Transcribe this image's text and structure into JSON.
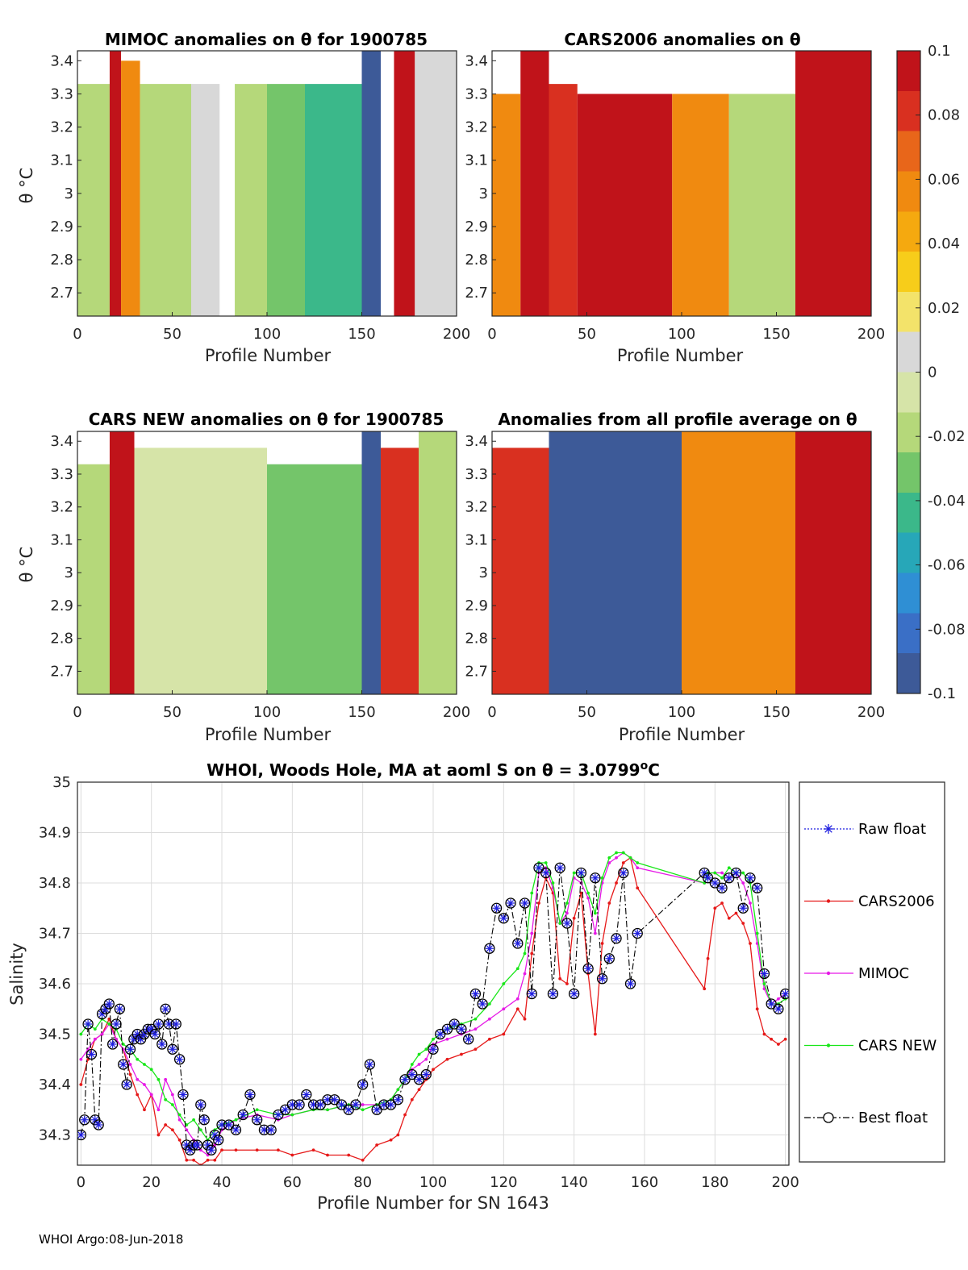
{
  "footer": "WHOI Argo:08-Jun-2018",
  "colorbar": {
    "ticks": [
      "0.1",
      "0.08",
      "0.06",
      "0.04",
      "0.02",
      "0",
      "-0.02",
      "-0.04",
      "-0.06",
      "-0.08",
      "-0.1"
    ],
    "range": [
      -0.1,
      0.1
    ],
    "colors": [
      "#3d5a98",
      "#3a6fc6",
      "#2f8fd4",
      "#27a7b8",
      "#3bb88a",
      "#74c56a",
      "#b5d87a",
      "#d6e4a8",
      "#d8d8d8",
      "#f3e36a",
      "#f7cd1a",
      "#f5a90f",
      "#f08a10",
      "#e8661a",
      "#d93020",
      "#c0131a"
    ]
  },
  "panels": [
    {
      "title": "MIMOC anomalies on θ  for 1900785",
      "xlabel": "Profile Number",
      "ylabel": "θ °C",
      "xticks": [
        "0",
        "50",
        "100",
        "150",
        "200"
      ],
      "yticks": [
        "3.4",
        "3.3",
        "3.2",
        "3.1",
        "3",
        "2.9",
        "2.8",
        "2.7"
      ]
    },
    {
      "title": "CARS2006 anomalies on θ",
      "xlabel": "Profile Number",
      "ylabel": "",
      "xticks": [
        "0",
        "50",
        "100",
        "150",
        "200"
      ],
      "yticks": [
        "3.4",
        "3.3",
        "3.2",
        "3.1",
        "3",
        "2.9",
        "2.8",
        "2.7"
      ]
    },
    {
      "title": "CARS NEW anomalies on θ for 1900785",
      "xlabel": "Profile Number",
      "ylabel": "θ °C",
      "xticks": [
        "0",
        "50",
        "100",
        "150",
        "200"
      ],
      "yticks": [
        "3.4",
        "3.3",
        "3.2",
        "3.1",
        "3",
        "2.9",
        "2.8",
        "2.7"
      ]
    },
    {
      "title": "Anomalies from all profile average on θ",
      "xlabel": "Profile Number",
      "ylabel": "",
      "xticks": [
        "0",
        "50",
        "100",
        "150",
        "200"
      ],
      "yticks": [
        "3.4",
        "3.3",
        "3.2",
        "3.1",
        "3",
        "2.9",
        "2.8",
        "2.7"
      ]
    }
  ],
  "chart_data": [
    {
      "type": "heatmap",
      "title": "MIMOC anomalies on θ  for 1900785",
      "xlabel": "Profile Number",
      "ylabel": "θ °C",
      "xlim": [
        0,
        200
      ],
      "ylim": [
        2.63,
        3.43
      ],
      "clim": [
        -0.1,
        0.1
      ],
      "columns": [
        {
          "x0": 0,
          "x1": 17,
          "v": -0.02,
          "ymax": 3.33
        },
        {
          "x0": 17,
          "x1": 23,
          "v": 0.1,
          "ymax": 3.43
        },
        {
          "x0": 23,
          "x1": 33,
          "v": 0.05,
          "ymax": 3.4
        },
        {
          "x0": 33,
          "x1": 60,
          "v": -0.02,
          "ymax": 3.33
        },
        {
          "x0": 60,
          "x1": 75,
          "v": 0.0,
          "ymax": 3.33
        },
        {
          "x0": 83,
          "x1": 100,
          "v": -0.02,
          "ymax": 3.33
        },
        {
          "x0": 100,
          "x1": 120,
          "v": -0.03,
          "ymax": 3.33
        },
        {
          "x0": 120,
          "x1": 150,
          "v": -0.05,
          "ymax": 3.33
        },
        {
          "x0": 150,
          "x1": 160,
          "v": -0.09,
          "ymax": 3.43
        },
        {
          "x0": 167,
          "x1": 178,
          "v": 0.1,
          "ymax": 3.43
        },
        {
          "x0": 178,
          "x1": 200,
          "v": 0.0,
          "ymax": 3.43
        }
      ]
    },
    {
      "type": "heatmap",
      "title": "CARS2006 anomalies on θ",
      "xlabel": "Profile Number",
      "ylabel": "",
      "xlim": [
        0,
        200
      ],
      "ylim": [
        2.63,
        3.43
      ],
      "clim": [
        -0.1,
        0.1
      ],
      "columns": [
        {
          "x0": 0,
          "x1": 15,
          "v": 0.06,
          "ymax": 3.3
        },
        {
          "x0": 15,
          "x1": 30,
          "v": 0.1,
          "ymax": 3.43
        },
        {
          "x0": 30,
          "x1": 45,
          "v": 0.08,
          "ymax": 3.33
        },
        {
          "x0": 45,
          "x1": 95,
          "v": 0.1,
          "ymax": 3.3
        },
        {
          "x0": 95,
          "x1": 125,
          "v": 0.06,
          "ymax": 3.3
        },
        {
          "x0": 125,
          "x1": 160,
          "v": -0.02,
          "ymax": 3.3
        },
        {
          "x0": 160,
          "x1": 200,
          "v": 0.1,
          "ymax": 3.43
        }
      ]
    },
    {
      "type": "heatmap",
      "title": "CARS NEW anomalies on θ for 1900785",
      "xlabel": "Profile Number",
      "ylabel": "θ °C",
      "xlim": [
        0,
        200
      ],
      "ylim": [
        2.63,
        3.43
      ],
      "clim": [
        -0.1,
        0.1
      ],
      "columns": [
        {
          "x0": 0,
          "x1": 17,
          "v": -0.02,
          "ymax": 3.33
        },
        {
          "x0": 17,
          "x1": 30,
          "v": 0.1,
          "ymax": 3.43
        },
        {
          "x0": 30,
          "x1": 100,
          "v": -0.01,
          "ymax": 3.38
        },
        {
          "x0": 100,
          "x1": 150,
          "v": -0.03,
          "ymax": 3.33
        },
        {
          "x0": 150,
          "x1": 160,
          "v": -0.09,
          "ymax": 3.43
        },
        {
          "x0": 160,
          "x1": 180,
          "v": 0.08,
          "ymax": 3.38
        },
        {
          "x0": 180,
          "x1": 200,
          "v": -0.02,
          "ymax": 3.43
        }
      ]
    },
    {
      "type": "heatmap",
      "title": "Anomalies from all profile average on θ",
      "xlabel": "Profile Number",
      "ylabel": "",
      "xlim": [
        0,
        200
      ],
      "ylim": [
        2.63,
        3.43
      ],
      "clim": [
        -0.1,
        0.1
      ],
      "columns": [
        {
          "x0": 0,
          "x1": 30,
          "v": 0.08,
          "ymax": 3.38
        },
        {
          "x0": 30,
          "x1": 100,
          "v": -0.1,
          "ymax": 3.43
        },
        {
          "x0": 100,
          "x1": 160,
          "v": 0.06,
          "ymax": 3.43
        },
        {
          "x0": 160,
          "x1": 200,
          "v": 0.1,
          "ymax": 3.43
        }
      ]
    },
    {
      "type": "line",
      "title": "WHOI, Woods Hole, MA at aoml S on θ = 3.0799°C",
      "title_main": "WHOI, Woods Hole, MA at aoml S on θ = 3.0799",
      "title_unit": "o",
      "title_tail": "C",
      "xlabel": "Profile Number for SN 1643",
      "ylabel": "Salinity",
      "xlim": [
        -1,
        201
      ],
      "ylim": [
        34.24,
        35.0
      ],
      "xticks": [
        "0",
        "20",
        "40",
        "60",
        "80",
        "100",
        "120",
        "140",
        "160",
        "180",
        "200"
      ],
      "yticks": [
        "35",
        "34.9",
        "34.8",
        "34.7",
        "34.6",
        "34.5",
        "34.4",
        "34.3"
      ],
      "legend": [
        "Raw float",
        "CARS2006",
        "MIMOC",
        "CARS NEW",
        "Best float"
      ],
      "series": [
        {
          "name": "Best float",
          "color": "#000000",
          "x": [
            0,
            1,
            2,
            3,
            4,
            5,
            6,
            7,
            8,
            9,
            10,
            11,
            12,
            13,
            14,
            15,
            16,
            17,
            18,
            19,
            20,
            21,
            22,
            23,
            24,
            25,
            26,
            27,
            28,
            29,
            30,
            31,
            32,
            33,
            34,
            35,
            36,
            37,
            38,
            39,
            40,
            42,
            44,
            46,
            48,
            50,
            52,
            54,
            56,
            58,
            60,
            62,
            64,
            66,
            68,
            70,
            72,
            74,
            76,
            78,
            80,
            82,
            84,
            86,
            88,
            90,
            92,
            94,
            96,
            98,
            100,
            102,
            104,
            106,
            108,
            110,
            112,
            114,
            116,
            118,
            120,
            122,
            124,
            126,
            128,
            130,
            132,
            134,
            136,
            138,
            140,
            142,
            144,
            146,
            148,
            150,
            152,
            154,
            156,
            158,
            177,
            178,
            180,
            182,
            184,
            186,
            188,
            190,
            192,
            194,
            196,
            198,
            200
          ],
          "y": [
            34.3,
            34.33,
            34.52,
            34.46,
            34.33,
            34.32,
            34.54,
            34.55,
            34.56,
            34.48,
            34.52,
            34.55,
            34.44,
            34.4,
            34.47,
            34.49,
            34.5,
            34.49,
            34.5,
            34.51,
            34.51,
            34.5,
            34.52,
            34.48,
            34.55,
            34.52,
            34.47,
            34.52,
            34.45,
            34.38,
            34.28,
            34.27,
            34.28,
            34.28,
            34.36,
            34.33,
            34.28,
            34.27,
            34.3,
            34.29,
            34.32,
            34.32,
            34.31,
            34.34,
            34.38,
            34.33,
            34.31,
            34.31,
            34.34,
            34.35,
            34.36,
            34.36,
            34.38,
            34.36,
            34.36,
            34.37,
            34.37,
            34.36,
            34.35,
            34.36,
            34.4,
            34.44,
            34.35,
            34.36,
            34.36,
            34.37,
            34.41,
            34.42,
            34.41,
            34.42,
            34.47,
            34.5,
            34.51,
            34.52,
            34.51,
            34.49,
            34.58,
            34.56,
            34.67,
            34.75,
            34.73,
            34.76,
            34.68,
            34.76,
            34.58,
            34.83,
            34.82,
            34.58,
            34.83,
            34.72,
            34.58,
            34.82,
            34.63,
            34.81,
            34.61,
            34.65,
            34.69,
            34.82,
            34.6,
            34.7,
            34.82,
            34.81,
            34.8,
            34.79,
            34.81,
            34.82,
            34.75,
            34.81,
            34.79,
            34.62,
            34.56,
            34.55,
            34.58
          ]
        },
        {
          "name": "CARS2006",
          "color": "#e61919",
          "x": [
            0,
            2,
            4,
            6,
            8,
            10,
            12,
            14,
            16,
            18,
            20,
            22,
            24,
            26,
            28,
            30,
            32,
            34,
            36,
            38,
            40,
            44,
            50,
            56,
            60,
            66,
            70,
            76,
            80,
            84,
            88,
            90,
            92,
            94,
            96,
            98,
            100,
            104,
            108,
            112,
            116,
            120,
            124,
            126,
            128,
            130,
            132,
            134,
            136,
            138,
            140,
            142,
            144,
            146,
            148,
            150,
            152,
            154,
            156,
            158,
            177,
            178,
            180,
            182,
            184,
            186,
            188,
            190,
            192,
            194,
            196,
            198,
            200
          ],
          "y": [
            34.4,
            34.45,
            34.49,
            34.5,
            34.53,
            34.49,
            34.47,
            34.42,
            34.38,
            34.35,
            34.38,
            34.3,
            34.32,
            34.31,
            34.29,
            34.25,
            34.25,
            34.24,
            34.25,
            34.25,
            34.27,
            34.27,
            34.27,
            34.27,
            34.26,
            34.27,
            34.26,
            34.26,
            34.25,
            34.28,
            34.29,
            34.3,
            34.34,
            34.37,
            34.39,
            34.41,
            34.43,
            34.45,
            34.46,
            34.47,
            34.49,
            34.5,
            34.55,
            34.53,
            34.66,
            34.76,
            34.81,
            34.78,
            34.61,
            34.6,
            34.73,
            34.78,
            34.62,
            34.5,
            34.68,
            34.76,
            34.8,
            34.84,
            34.85,
            34.79,
            34.59,
            34.65,
            34.75,
            34.76,
            34.73,
            34.74,
            34.72,
            34.68,
            34.55,
            34.5,
            34.49,
            34.48,
            34.49
          ]
        },
        {
          "name": "MIMOC",
          "color": "#e619e6",
          "x": [
            0,
            2,
            4,
            6,
            8,
            10,
            12,
            14,
            16,
            18,
            20,
            22,
            24,
            26,
            28,
            30,
            32,
            34,
            36,
            38,
            40,
            44,
            50,
            56,
            60,
            66,
            70,
            76,
            80,
            84,
            88,
            90,
            92,
            94,
            96,
            98,
            100,
            104,
            108,
            112,
            116,
            120,
            124,
            126,
            128,
            130,
            132,
            134,
            136,
            138,
            140,
            142,
            144,
            146,
            148,
            150,
            152,
            154,
            156,
            158,
            177,
            178,
            180,
            182,
            184,
            186,
            188,
            190,
            192,
            194,
            196,
            198,
            200
          ],
          "y": [
            34.45,
            34.47,
            34.49,
            34.5,
            34.52,
            34.49,
            34.47,
            34.44,
            34.41,
            34.4,
            34.38,
            34.35,
            34.41,
            34.38,
            34.33,
            34.31,
            34.29,
            34.27,
            34.26,
            34.28,
            34.31,
            34.33,
            34.34,
            34.33,
            34.34,
            34.35,
            34.35,
            34.36,
            34.36,
            34.36,
            34.37,
            34.39,
            34.41,
            34.43,
            34.44,
            34.45,
            34.48,
            34.49,
            34.5,
            34.51,
            34.53,
            34.55,
            34.57,
            34.62,
            34.7,
            34.82,
            34.83,
            34.79,
            34.72,
            34.74,
            34.81,
            34.8,
            34.77,
            34.7,
            34.8,
            34.84,
            34.85,
            34.86,
            34.85,
            34.83,
            34.8,
            34.82,
            34.82,
            34.82,
            34.81,
            34.82,
            34.8,
            34.76,
            34.68,
            34.59,
            34.56,
            34.57,
            34.58
          ]
        },
        {
          "name": "CARS NEW",
          "color": "#19e619",
          "x": [
            0,
            2,
            4,
            6,
            8,
            10,
            12,
            14,
            16,
            18,
            20,
            22,
            24,
            26,
            28,
            30,
            32,
            34,
            36,
            38,
            40,
            44,
            50,
            56,
            60,
            66,
            70,
            76,
            80,
            84,
            88,
            90,
            92,
            94,
            96,
            98,
            100,
            104,
            108,
            112,
            116,
            120,
            124,
            126,
            128,
            130,
            132,
            134,
            136,
            138,
            140,
            142,
            144,
            146,
            148,
            150,
            152,
            154,
            156,
            158,
            177,
            178,
            180,
            182,
            184,
            186,
            188,
            190,
            192,
            194,
            196,
            198,
            200
          ],
          "y": [
            34.5,
            34.52,
            34.51,
            34.53,
            34.52,
            34.51,
            34.48,
            34.47,
            34.45,
            34.44,
            34.43,
            34.41,
            34.37,
            34.36,
            34.34,
            34.32,
            34.33,
            34.31,
            34.29,
            34.31,
            34.32,
            34.33,
            34.35,
            34.34,
            34.34,
            34.35,
            34.35,
            34.36,
            34.35,
            34.36,
            34.37,
            34.39,
            34.41,
            34.44,
            34.46,
            34.47,
            34.49,
            34.51,
            34.52,
            34.53,
            34.56,
            34.6,
            34.63,
            34.66,
            34.78,
            34.84,
            34.84,
            34.8,
            34.72,
            34.76,
            34.82,
            34.82,
            34.78,
            34.74,
            34.81,
            34.85,
            34.86,
            34.86,
            34.85,
            34.84,
            34.8,
            34.82,
            34.82,
            34.81,
            34.83,
            34.82,
            34.82,
            34.8,
            34.7,
            34.6,
            34.56,
            34.56,
            34.57
          ]
        }
      ]
    }
  ]
}
